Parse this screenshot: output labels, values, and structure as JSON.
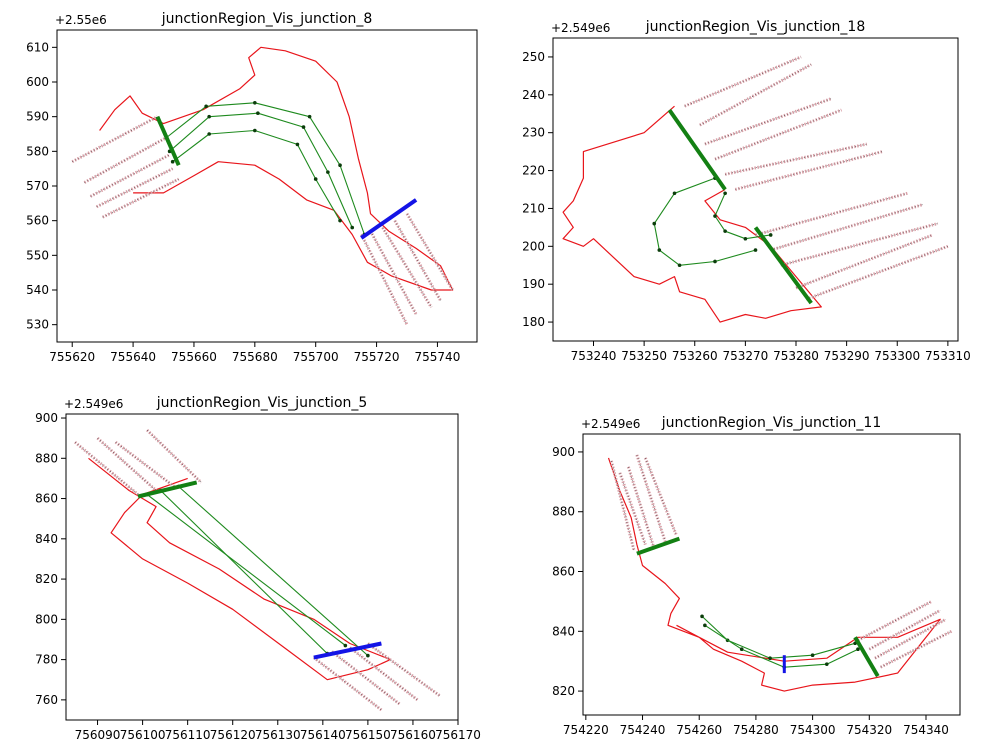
{
  "chart_data": [
    {
      "type": "line",
      "title": "junctionRegion_Vis_junction_8",
      "offset_label": "+2.55e6",
      "xlim": [
        755615,
        755753
      ],
      "ylim": [
        525,
        615
      ],
      "x_ticks": [
        755620,
        755640,
        755660,
        755680,
        755700,
        755720,
        755740
      ],
      "y_ticks": [
        530,
        540,
        550,
        560,
        570,
        580,
        590,
        600,
        610
      ],
      "x_tick_labels": [
        "755620",
        "755640",
        "755660",
        "755680",
        "755700",
        "755720",
        "755740"
      ],
      "y_tick_labels": [
        "530",
        "540",
        "550",
        "560",
        "570",
        "580",
        "590",
        "600",
        "610"
      ],
      "boundary": [
        [
          755629,
          586
        ],
        [
          755634,
          592
        ],
        [
          755639,
          596
        ],
        [
          755643,
          591
        ],
        [
          755650,
          588
        ],
        [
          755663,
          592
        ],
        [
          755675,
          598
        ],
        [
          755680,
          602
        ],
        [
          755678,
          607
        ],
        [
          755682,
          610
        ],
        [
          755690,
          609
        ],
        [
          755700,
          606
        ],
        [
          755707,
          600
        ],
        [
          755711,
          590
        ],
        [
          755714,
          578
        ],
        [
          755717,
          568
        ],
        [
          755718,
          562
        ],
        [
          755724,
          557
        ],
        [
          755733,
          552
        ],
        [
          755741,
          547
        ],
        [
          755745,
          540
        ],
        [
          755738,
          540
        ],
        [
          755725,
          544
        ],
        [
          755717,
          548
        ],
        [
          755712,
          556
        ],
        [
          755706,
          563
        ],
        [
          755697,
          566
        ],
        [
          755688,
          572
        ],
        [
          755680,
          576
        ],
        [
          755668,
          577
        ],
        [
          755660,
          573
        ],
        [
          755650,
          568
        ],
        [
          755640,
          568
        ]
      ],
      "lanes_left": [
        [
          [
            755620,
            577
          ],
          [
            755648,
            590
          ]
        ],
        [
          [
            755624,
            571
          ],
          [
            755651,
            584
          ]
        ],
        [
          [
            755626,
            567
          ],
          [
            755652,
            579
          ]
        ],
        [
          [
            755628,
            564
          ],
          [
            755653,
            575
          ]
        ],
        [
          [
            755630,
            561
          ],
          [
            755655,
            572
          ]
        ]
      ],
      "lanes_right": [
        [
          [
            755715,
            556
          ],
          [
            755730,
            530
          ]
        ],
        [
          [
            755718,
            557
          ],
          [
            755733,
            533
          ]
        ],
        [
          [
            755722,
            558
          ],
          [
            755738,
            535
          ]
        ],
        [
          [
            755726,
            560
          ],
          [
            755741,
            537
          ]
        ],
        [
          [
            755730,
            562
          ],
          [
            755745,
            540
          ]
        ]
      ],
      "connectors": [
        [
          [
            755653,
            577
          ],
          [
            755665,
            585
          ],
          [
            755680,
            586
          ],
          [
            755694,
            582
          ],
          [
            755700,
            572
          ],
          [
            755708,
            560
          ]
        ],
        [
          [
            755652,
            580
          ],
          [
            755665,
            590
          ],
          [
            755681,
            591
          ],
          [
            755696,
            587
          ],
          [
            755704,
            574
          ],
          [
            755712,
            558
          ]
        ],
        [
          [
            755651,
            584
          ],
          [
            755664,
            593
          ],
          [
            755680,
            594
          ],
          [
            755698,
            590
          ],
          [
            755708,
            576
          ],
          [
            755716,
            556
          ]
        ]
      ],
      "entry_line": [
        [
          755648,
          590
        ],
        [
          755655,
          576
        ]
      ],
      "exit_line": [
        [
          755715,
          555
        ],
        [
          755733,
          566
        ]
      ]
    },
    {
      "type": "line",
      "title": "junctionRegion_Vis_junction_18",
      "offset_label": "+2.549e6",
      "xlim": [
        753232,
        753312
      ],
      "ylim": [
        175,
        255
      ],
      "x_ticks": [
        753240,
        753250,
        753260,
        753270,
        753280,
        753290,
        753300,
        753310
      ],
      "y_ticks": [
        180,
        190,
        200,
        210,
        220,
        230,
        240,
        250
      ],
      "x_tick_labels": [
        "753240",
        "753250",
        "753260",
        "753270",
        "753280",
        "753290",
        "753300",
        "753310"
      ],
      "y_tick_labels": [
        "180",
        "190",
        "200",
        "210",
        "220",
        "230",
        "240",
        "250"
      ],
      "boundary": [
        [
          753256,
          237
        ],
        [
          753250,
          230
        ],
        [
          753238,
          225
        ],
        [
          753238,
          218
        ],
        [
          753236,
          212
        ],
        [
          753234,
          209
        ],
        [
          753236,
          205
        ],
        [
          753234,
          202
        ],
        [
          753238,
          200
        ],
        [
          753240,
          202
        ],
        [
          753244,
          197
        ],
        [
          753248,
          192
        ],
        [
          753253,
          190
        ],
        [
          753256,
          192
        ],
        [
          753257,
          188
        ],
        [
          753262,
          186
        ],
        [
          753265,
          180
        ],
        [
          753270,
          182
        ],
        [
          753274,
          181
        ],
        [
          753279,
          183
        ],
        [
          753285,
          184
        ],
        [
          753280,
          192
        ],
        [
          753275,
          200
        ],
        [
          753270,
          205
        ],
        [
          753265,
          207
        ],
        [
          753262,
          212
        ],
        [
          753266,
          215
        ]
      ],
      "lanes_upper": [
        [
          [
            753258,
            237
          ],
          [
            753281,
            250
          ]
        ],
        [
          [
            753261,
            232
          ],
          [
            753283,
            248
          ]
        ],
        [
          [
            753262,
            227
          ],
          [
            753287,
            239
          ]
        ],
        [
          [
            753264,
            223
          ],
          [
            753289,
            236
          ]
        ],
        [
          [
            753266,
            219
          ],
          [
            753294,
            227
          ]
        ],
        [
          [
            753268,
            215
          ],
          [
            753297,
            225
          ]
        ]
      ],
      "lanes_lower": [
        [
          [
            753272,
            203
          ],
          [
            753302,
            214
          ]
        ],
        [
          [
            753275,
            199
          ],
          [
            753305,
            211
          ]
        ],
        [
          [
            753277,
            195
          ],
          [
            753308,
            206
          ]
        ],
        [
          [
            753280,
            189
          ],
          [
            753307,
            203
          ]
        ],
        [
          [
            753282,
            186
          ],
          [
            753310,
            200
          ]
        ]
      ],
      "connectors": [
        [
          [
            753264,
            218
          ],
          [
            753256,
            214
          ],
          [
            753252,
            206
          ],
          [
            753253,
            199
          ],
          [
            753257,
            195
          ],
          [
            753264,
            196
          ],
          [
            753272,
            199
          ]
        ],
        [
          [
            753266,
            214
          ],
          [
            753264,
            208
          ],
          [
            753266,
            204
          ],
          [
            753270,
            202
          ],
          [
            753275,
            203
          ]
        ]
      ],
      "entry_line": [
        [
          753255,
          236
        ],
        [
          753266,
          215
        ]
      ],
      "exit_line": [
        [
          753272,
          205
        ],
        [
          753283,
          185
        ]
      ]
    },
    {
      "type": "line",
      "title": "junctionRegion_Vis_junction_5",
      "offset_label": "+2.549e6",
      "xlim": [
        756083,
        756170
      ],
      "ylim": [
        750,
        902
      ],
      "x_ticks": [
        756090,
        756100,
        756110,
        756120,
        756130,
        756140,
        756150,
        756160,
        756170
      ],
      "y_ticks": [
        760,
        780,
        800,
        820,
        840,
        860,
        880,
        900
      ],
      "x_tick_labels": [
        "756090",
        "756100",
        "756110",
        "756120",
        "756130",
        "756140",
        "756150",
        "756160",
        "756170"
      ],
      "y_tick_labels": [
        "760",
        "780",
        "800",
        "820",
        "840",
        "860",
        "880",
        "900"
      ],
      "boundary": [
        [
          756088,
          880
        ],
        [
          756097,
          864
        ],
        [
          756103,
          856
        ],
        [
          756101,
          848
        ],
        [
          756106,
          838
        ],
        [
          756117,
          825
        ],
        [
          756127,
          810
        ],
        [
          756138,
          800
        ],
        [
          756146,
          788
        ],
        [
          756155,
          780
        ],
        [
          756150,
          775
        ],
        [
          756141,
          770
        ],
        [
          756132,
          785
        ],
        [
          756120,
          805
        ],
        [
          756110,
          818
        ],
        [
          756100,
          830
        ],
        [
          756093,
          843
        ],
        [
          756096,
          853
        ],
        [
          756100,
          862
        ],
        [
          756110,
          870
        ]
      ],
      "lanes_upper": [
        [
          [
            756085,
            888
          ],
          [
            756099,
            862
          ]
        ],
        [
          [
            756090,
            890
          ],
          [
            756103,
            864
          ]
        ],
        [
          [
            756094,
            888
          ],
          [
            756107,
            866
          ]
        ],
        [
          [
            756101,
            894
          ],
          [
            756113,
            868
          ]
        ]
      ],
      "lanes_lower": [
        [
          [
            756138,
            781
          ],
          [
            756153,
            755
          ]
        ],
        [
          [
            756142,
            784
          ],
          [
            756157,
            758
          ]
        ],
        [
          [
            756146,
            786
          ],
          [
            756161,
            760
          ]
        ],
        [
          [
            756150,
            788
          ],
          [
            756166,
            762
          ]
        ]
      ],
      "connectors": [
        [
          [
            756101,
            862
          ],
          [
            756145,
            787
          ]
        ],
        [
          [
            756104,
            864
          ],
          [
            756141,
            783
          ]
        ],
        [
          [
            756108,
            866
          ],
          [
            756150,
            782
          ]
        ]
      ],
      "entry_line": [
        [
          756099,
          861
        ],
        [
          756112,
          868
        ]
      ],
      "exit_line": [
        [
          756138,
          781
        ],
        [
          756153,
          788
        ]
      ]
    },
    {
      "type": "line",
      "title": "junctionRegion_Vis_junction_11",
      "offset_label": "+2.549e6",
      "xlim": [
        754219,
        754352
      ],
      "ylim": [
        812,
        906
      ],
      "x_ticks": [
        754220,
        754240,
        754260,
        754280,
        754300,
        754320,
        754340
      ],
      "y_ticks": [
        820,
        840,
        860,
        880,
        900
      ],
      "x_tick_labels": [
        "754220",
        "754240",
        "754260",
        "754280",
        "754300",
        "754320",
        "754340"
      ],
      "y_tick_labels": [
        "820",
        "840",
        "860",
        "880",
        "900"
      ],
      "boundary": [
        [
          754228,
          898
        ],
        [
          754232,
          887
        ],
        [
          754236,
          878
        ],
        [
          754238,
          869
        ],
        [
          754240,
          862
        ],
        [
          754248,
          856
        ],
        [
          754253,
          851
        ],
        [
          754250,
          846
        ],
        [
          754249,
          842
        ],
        [
          754260,
          838
        ],
        [
          754270,
          833
        ],
        [
          754290,
          830
        ],
        [
          754305,
          831
        ],
        [
          754316,
          838
        ],
        [
          754330,
          838
        ],
        [
          754345,
          844
        ],
        [
          754340,
          838
        ],
        [
          754330,
          826
        ],
        [
          754315,
          823
        ],
        [
          754300,
          822
        ],
        [
          754290,
          820
        ],
        [
          754282,
          822
        ],
        [
          754283,
          826
        ],
        [
          754275,
          830
        ],
        [
          754265,
          834
        ],
        [
          754260,
          838
        ],
        [
          754252,
          842
        ]
      ],
      "lanes_left": [
        [
          [
            754229,
            897
          ],
          [
            754237,
            867
          ]
        ],
        [
          [
            754232,
            893
          ],
          [
            754241,
            869
          ]
        ],
        [
          [
            754235,
            895
          ],
          [
            754244,
            868
          ]
        ],
        [
          [
            754238,
            899
          ],
          [
            754248,
            870
          ]
        ],
        [
          [
            754241,
            898
          ],
          [
            754252,
            872
          ]
        ]
      ],
      "lanes_right": [
        [
          [
            754316,
            837
          ],
          [
            754342,
            850
          ]
        ],
        [
          [
            754320,
            834
          ],
          [
            754345,
            847
          ]
        ],
        [
          [
            754322,
            831
          ],
          [
            754347,
            844
          ]
        ],
        [
          [
            754324,
            828
          ],
          [
            754349,
            840
          ]
        ]
      ],
      "connectors": [
        [
          [
            754261,
            845
          ],
          [
            754270,
            837
          ],
          [
            754285,
            831
          ],
          [
            754300,
            832
          ],
          [
            754315,
            836
          ]
        ],
        [
          [
            754262,
            842
          ],
          [
            754275,
            834
          ],
          [
            754290,
            828
          ],
          [
            754305,
            829
          ],
          [
            754316,
            834
          ]
        ]
      ],
      "entry_line": [
        [
          754238,
          866
        ],
        [
          754253,
          871
        ]
      ],
      "exit_line": [
        [
          754315,
          838
        ],
        [
          754323,
          825
        ]
      ],
      "mid_line": [
        [
          754290,
          826
        ],
        [
          754290,
          832
        ]
      ]
    }
  ]
}
